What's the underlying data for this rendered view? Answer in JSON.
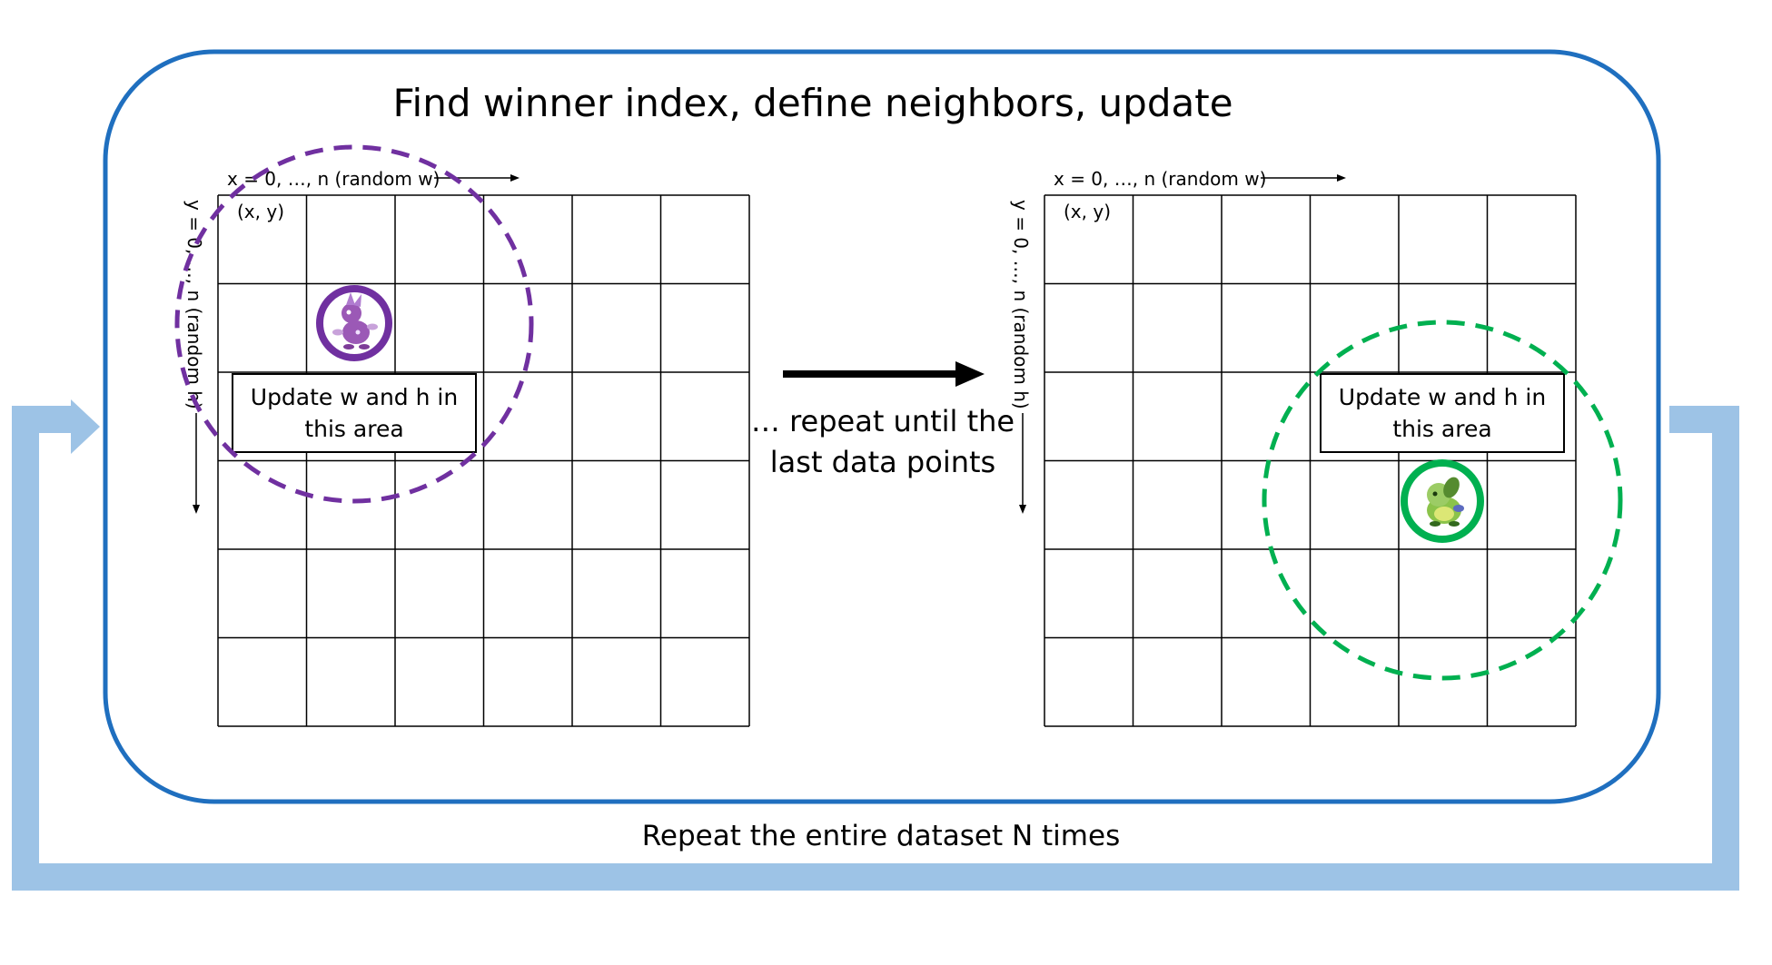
{
  "title": "Find winner index, define neighbors, update",
  "step_text": [
    "… repeat until the",
    "last data points"
  ],
  "loop_text": "Repeat the entire dataset N times",
  "colors": {
    "outer_border": "#1F6FBF",
    "loop_arrow": "#9DC3E6",
    "left_highlight": "#7030A0",
    "right_highlight": "#00B050",
    "grid_line": "#000000"
  },
  "grids": [
    {
      "id": "left",
      "x_label": "x = 0, …, n (random w)",
      "y_label": "y = 0, …, n (random h)",
      "corner_label": "(x, y)",
      "update_box": [
        "Update w and h in",
        "this area"
      ],
      "winner_icon": "purple-pokemon-icon",
      "winner_cell": [
        2,
        2
      ],
      "highlight_color": "#7030A0"
    },
    {
      "id": "right",
      "x_label": "x = 0, …, n (random w)",
      "y_label": "y = 0, …, n (random h)",
      "corner_label": "(x, y)",
      "update_box": [
        "Update w and h in",
        "this area"
      ],
      "winner_icon": "green-pokemon-icon",
      "winner_cell": [
        5,
        4
      ],
      "highlight_color": "#00B050"
    }
  ]
}
